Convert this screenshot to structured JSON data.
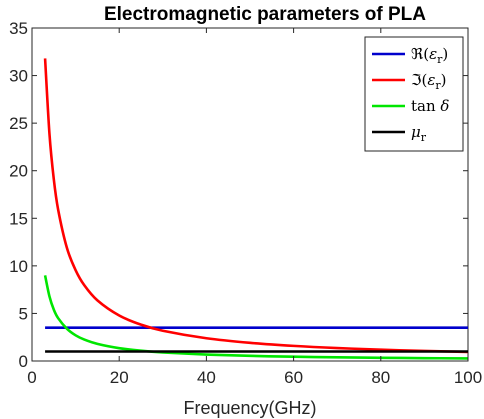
{
  "chart_data": {
    "type": "line",
    "title": "Electromagnetic parameters of PLA",
    "xlabel": "Frequency(GHz)",
    "ylabel": "",
    "xlim": [
      0,
      100
    ],
    "ylim": [
      0,
      35
    ],
    "xticks": [
      0,
      20,
      40,
      60,
      80,
      100
    ],
    "yticks": [
      0,
      5,
      10,
      15,
      20,
      25,
      30,
      35
    ],
    "grid": false,
    "legend_position": "top-right",
    "x": [
      3,
      4,
      5,
      6,
      8,
      10,
      12,
      15,
      20,
      25,
      30,
      40,
      50,
      60,
      70,
      80,
      90,
      100
    ],
    "series": [
      {
        "name": "ℜ(ε_r)",
        "legend": {
          "main": "ℜ(",
          "symbol": "ε",
          "sub": "r",
          "close": ")"
        },
        "color": "#0000cc",
        "values": [
          3.5,
          3.5,
          3.5,
          3.5,
          3.5,
          3.5,
          3.5,
          3.5,
          3.5,
          3.5,
          3.5,
          3.5,
          3.5,
          3.5,
          3.5,
          3.5,
          3.5,
          3.5
        ]
      },
      {
        "name": "ℑ(ε_r)",
        "legend": {
          "main": "ℑ(",
          "symbol": "ε",
          "sub": "r",
          "close": ")"
        },
        "color": "#ff0000",
        "values": [
          31.8,
          23.9,
          19.1,
          15.9,
          11.9,
          9.55,
          7.96,
          6.37,
          4.78,
          3.82,
          3.18,
          2.39,
          1.91,
          1.59,
          1.36,
          1.19,
          1.06,
          0.95
        ]
      },
      {
        "name": "tan δ",
        "legend": {
          "main": "tan ",
          "symbol": "δ",
          "sub": "",
          "close": ""
        },
        "color": "#00e600",
        "values": [
          9.0,
          6.8,
          5.4,
          4.5,
          3.4,
          2.7,
          2.25,
          1.8,
          1.35,
          1.08,
          0.9,
          0.68,
          0.54,
          0.45,
          0.39,
          0.34,
          0.3,
          0.27
        ]
      },
      {
        "name": "μ_r",
        "legend": {
          "main": "",
          "symbol": "μ",
          "sub": "r",
          "close": ""
        },
        "color": "#000000",
        "values": [
          1,
          1,
          1,
          1,
          1,
          1,
          1,
          1,
          1,
          1,
          1,
          1,
          1,
          1,
          1,
          1,
          1,
          1
        ]
      }
    ]
  }
}
